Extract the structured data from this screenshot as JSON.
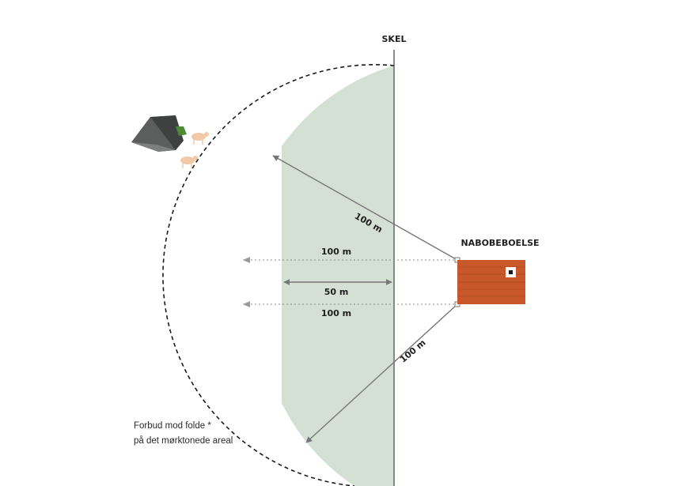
{
  "labels": {
    "skel": "SKEL",
    "nabobeboelse": "NABOBEBOELSE",
    "radius_upper": "100 m",
    "horizontal_upper": "100 m",
    "horizontal_middle": "50 m",
    "horizontal_lower": "100 m",
    "radius_lower": "100 m"
  },
  "note": {
    "line1": "Forbud mod folde *",
    "line2": "på det mørktonede areal"
  },
  "colors": {
    "shaded_area": "#d5e0d4",
    "boundary_line": "#6e6e6e",
    "house": "#c8582a",
    "arc": "#1a1a1a"
  },
  "icons": [
    "shelter-icon",
    "animal-icon",
    "house-icon"
  ]
}
